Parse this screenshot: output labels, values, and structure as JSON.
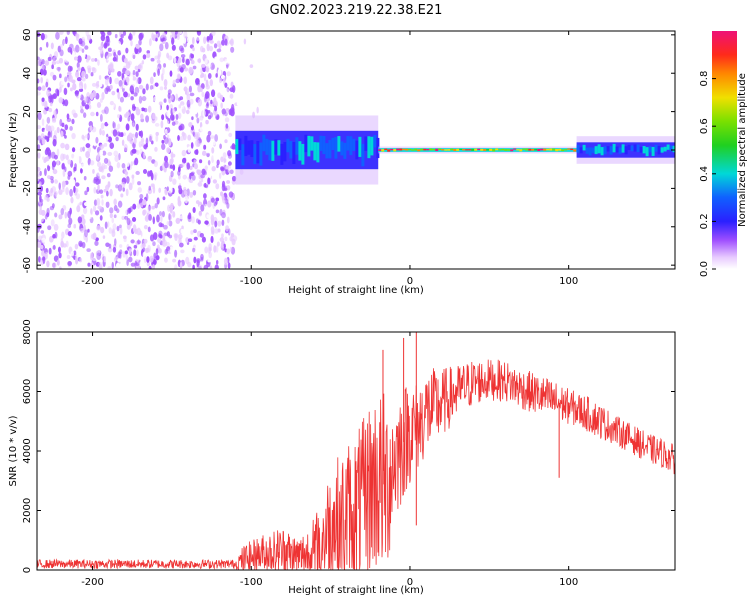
{
  "title": "GN02.2023.219.22.38.E21",
  "colors": {
    "snr_line": "#ee3333",
    "noise": "#8a2be2",
    "carrier": "#dd2255"
  },
  "chart_data": [
    {
      "type": "heatmap",
      "xlabel": "Height of straight line (km)",
      "ylabel": "Frequency (Hz)",
      "xlim": [
        -235,
        167
      ],
      "ylim": [
        -62,
        62
      ],
      "x_ticks": [
        {
          "value": -200,
          "label": "-200"
        },
        {
          "value": -100,
          "label": "-100"
        },
        {
          "value": 0,
          "label": "0"
        },
        {
          "value": 100,
          "label": "100"
        }
      ],
      "y_ticks": [
        {
          "value": 60,
          "label": "60"
        },
        {
          "value": 40,
          "label": "40"
        },
        {
          "value": 20,
          "label": "20"
        },
        {
          "value": 0,
          "label": "0"
        },
        {
          "value": -20,
          "label": "-20"
        },
        {
          "value": -40,
          "label": "-40"
        },
        {
          "value": -60,
          "label": "-60"
        }
      ],
      "regions": [
        {
          "x_range": [
            -235,
            -110
          ],
          "freq_range": [
            -62,
            62
          ],
          "amplitude": 0.1
        },
        {
          "x_range": [
            -110,
            -95
          ],
          "freq_range": [
            -62,
            62
          ],
          "amplitude": 0.03
        },
        {
          "x_range": [
            -110,
            -20
          ],
          "freq_range": [
            -10,
            10
          ],
          "amplitude": 0.4
        },
        {
          "x_range": [
            -20,
            105
          ],
          "freq_range": [
            -1,
            1
          ],
          "amplitude": 0.95
        },
        {
          "x_range": [
            105,
            167
          ],
          "freq_range": [
            -4,
            4
          ],
          "amplitude": 0.4
        }
      ],
      "colorbar": {
        "label": "Normalized spectral amplitude",
        "range": [
          0,
          1
        ],
        "ticks": [
          {
            "value": 0.0,
            "label": "0.0"
          },
          {
            "value": 0.2,
            "label": "0.2"
          },
          {
            "value": 0.4,
            "label": "0.4"
          },
          {
            "value": 0.6,
            "label": "0.6"
          },
          {
            "value": 0.8,
            "label": "0.8"
          }
        ]
      }
    },
    {
      "type": "line",
      "xlabel": "Height of straight line (km)",
      "ylabel": "SNR (10 * v/v)",
      "xlim": [
        -235,
        167
      ],
      "ylim": [
        0,
        8000
      ],
      "x_ticks": [
        {
          "value": -200,
          "label": "-200"
        },
        {
          "value": -100,
          "label": "-100"
        },
        {
          "value": 0,
          "label": "0"
        },
        {
          "value": 100,
          "label": "100"
        }
      ],
      "y_ticks": [
        {
          "value": 0,
          "label": "0"
        },
        {
          "value": 2000,
          "label": "2000"
        },
        {
          "value": 4000,
          "label": "4000"
        },
        {
          "value": 6000,
          "label": "6000"
        },
        {
          "value": 8000,
          "label": "8000"
        }
      ],
      "series": [
        {
          "x": [
            -235,
            -200,
            -150,
            -110,
            -105,
            -90,
            -80,
            -70,
            -60,
            -50,
            -40,
            -30,
            -25,
            -20,
            -15,
            -10,
            -5,
            0,
            5,
            10,
            20,
            30,
            40,
            50,
            60,
            70,
            80,
            90,
            100,
            110,
            120,
            130,
            140,
            150,
            160,
            167
          ],
          "y": [
            200,
            200,
            200,
            200,
            350,
            600,
            600,
            450,
            600,
            1500,
            1800,
            2200,
            2800,
            3000,
            2800,
            3700,
            4200,
            4700,
            4800,
            5300,
            5600,
            6000,
            6300,
            6400,
            6350,
            6100,
            5900,
            5700,
            5500,
            5300,
            5000,
            4700,
            4400,
            4100,
            3900,
            3700
          ],
          "noise_amplitude": [
            150,
            150,
            150,
            150,
            500,
            700,
            900,
            700,
            1200,
            2000,
            2500,
            2800,
            3000,
            3200,
            3200,
            2200,
            2000,
            1800,
            1500,
            1500,
            1200,
            900,
            800,
            700,
            700,
            700,
            700,
            700,
            600,
            600,
            600,
            500,
            500,
            500,
            500,
            500
          ]
        }
      ],
      "spikes": [
        {
          "x": -17,
          "y": 7400
        },
        {
          "x": -4,
          "y": 7800
        },
        {
          "x": 4,
          "y": 8000
        },
        {
          "x": 4,
          "y": 1500
        },
        {
          "x": 94,
          "y": 3100
        }
      ]
    }
  ]
}
